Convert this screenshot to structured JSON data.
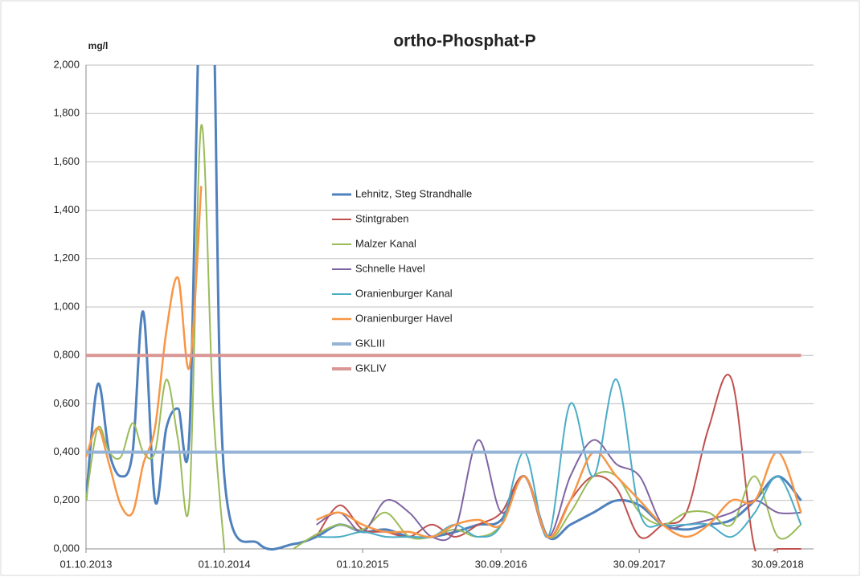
{
  "chart_data": {
    "type": "line",
    "title": "ortho-Phosphat-P",
    "y_label": "mg/l",
    "x": [
      "01.10.2013",
      "01.11.2013",
      "01.12.2013",
      "01.01.2014",
      "01.02.2014",
      "01.03.2014",
      "01.04.2014",
      "01.05.2014",
      "01.06.2014",
      "01.07.2014",
      "01.08.2014",
      "01.09.2014",
      "01.10.2014",
      "01.01.2015",
      "01.04.2015",
      "01.06.2015",
      "01.08.2015",
      "01.10.2015",
      "01.12.2015",
      "01.02.2016",
      "01.04.2016",
      "01.06.2016",
      "01.08.2016",
      "01.10.2016",
      "01.12.2016",
      "01.02.2017",
      "01.04.2017",
      "01.06.2017",
      "01.08.2017",
      "01.10.2017",
      "01.12.2017",
      "01.02.2018",
      "01.04.2018",
      "01.06.2018",
      "01.08.2018",
      "01.10.2018",
      "01.12.2018"
    ],
    "series": [
      {
        "name": "Lehnitz, Steg Strandhalle",
        "color": "#4f81bd",
        "width": 3,
        "values": [
          0.2,
          0.68,
          0.4,
          0.3,
          0.4,
          0.98,
          0.2,
          0.5,
          0.58,
          0.48,
          2.5,
          2.3,
          0.3,
          0.02,
          0.02,
          0.05,
          0.1,
          0.07,
          0.08,
          0.05,
          0.05,
          0.07,
          0.1,
          0.12,
          0.3,
          0.05,
          0.1,
          0.15,
          0.2,
          0.18,
          0.1,
          0.08,
          0.1,
          0.12,
          0.2,
          0.3,
          0.2
        ]
      },
      {
        "name": "Stintgraben",
        "color": "#c0504d",
        "width": 2,
        "values": [
          null,
          null,
          null,
          null,
          null,
          null,
          null,
          null,
          null,
          null,
          null,
          null,
          null,
          null,
          null,
          0.05,
          0.18,
          0.08,
          0.07,
          0.05,
          0.1,
          0.05,
          0.1,
          0.15,
          0.3,
          0.05,
          0.2,
          0.3,
          0.25,
          0.05,
          0.1,
          0.15,
          0.5,
          0.7,
          0.0,
          0.0,
          0.0
        ]
      },
      {
        "name": "Malzer Kanal",
        "color": "#9bbb59",
        "width": 2,
        "values": [
          0.2,
          0.5,
          0.4,
          0.38,
          0.52,
          0.4,
          0.4,
          0.7,
          0.45,
          0.2,
          1.75,
          0.6,
          0.0,
          null,
          0.0,
          0.06,
          0.1,
          0.08,
          0.15,
          0.05,
          0.05,
          0.08,
          0.05,
          0.1,
          0.3,
          0.05,
          0.15,
          0.3,
          0.3,
          0.15,
          0.1,
          0.15,
          0.15,
          0.1,
          0.3,
          0.05,
          0.1
        ]
      },
      {
        "name": "Schnelle Havel",
        "color": "#8064a2",
        "width": 2,
        "values": [
          null,
          null,
          null,
          null,
          null,
          null,
          null,
          null,
          null,
          null,
          null,
          null,
          null,
          null,
          null,
          0.1,
          0.15,
          0.07,
          0.2,
          0.15,
          0.05,
          0.08,
          0.45,
          0.15,
          0.3,
          0.05,
          0.3,
          0.45,
          0.35,
          0.3,
          0.1,
          0.1,
          0.12,
          0.15,
          0.2,
          0.15,
          0.15
        ]
      },
      {
        "name": "Oranienburger Kanal",
        "color": "#4bacc6",
        "width": 2,
        "values": [
          null,
          null,
          null,
          null,
          null,
          null,
          null,
          null,
          null,
          null,
          null,
          null,
          null,
          null,
          null,
          0.05,
          0.05,
          0.07,
          0.05,
          0.05,
          0.05,
          0.1,
          0.05,
          0.1,
          0.4,
          0.05,
          0.6,
          0.3,
          0.7,
          0.15,
          0.1,
          0.1,
          0.1,
          0.05,
          0.15,
          0.3,
          0.1
        ]
      },
      {
        "name": "Oranienburger Havel",
        "color": "#f79646",
        "width": 2.5,
        "values": [
          0.38,
          0.5,
          0.35,
          0.18,
          0.15,
          0.35,
          0.5,
          0.9,
          1.12,
          0.75,
          1.5,
          null,
          null,
          null,
          null,
          0.12,
          0.15,
          0.1,
          0.07,
          0.07,
          0.05,
          0.1,
          0.12,
          0.1,
          0.3,
          0.05,
          0.2,
          0.4,
          0.3,
          0.2,
          0.1,
          0.05,
          0.1,
          0.2,
          0.2,
          0.4,
          0.15
        ]
      },
      {
        "name": "GKLIII",
        "color": "#95b3d7",
        "width": 4,
        "values": [
          0.4,
          0.4,
          0.4,
          0.4,
          0.4,
          0.4,
          0.4,
          0.4,
          0.4,
          0.4,
          0.4,
          0.4,
          0.4,
          0.4,
          0.4,
          0.4,
          0.4,
          0.4,
          0.4,
          0.4,
          0.4,
          0.4,
          0.4,
          0.4,
          0.4,
          0.4,
          0.4,
          0.4,
          0.4,
          0.4,
          0.4,
          0.4,
          0.4,
          0.4,
          0.4,
          0.4,
          0.4
        ]
      },
      {
        "name": "GKLIV",
        "color": "#d99694",
        "width": 4,
        "values": [
          0.8,
          0.8,
          0.8,
          0.8,
          0.8,
          0.8,
          0.8,
          0.8,
          0.8,
          0.8,
          0.8,
          0.8,
          0.8,
          0.8,
          0.8,
          0.8,
          0.8,
          0.8,
          0.8,
          0.8,
          0.8,
          0.8,
          0.8,
          0.8,
          0.8,
          0.8,
          0.8,
          0.8,
          0.8,
          0.8,
          0.8,
          0.8,
          0.8,
          0.8,
          0.8,
          0.8,
          0.8
        ]
      }
    ],
    "xlim": [
      "01.10.2013",
      "03.01.2019"
    ],
    "xticks": [
      "01.10.2013",
      "01.10.2014",
      "01.10.2015",
      "30.09.2016",
      "30.09.2017",
      "30.09.2018"
    ],
    "ylim": [
      0,
      2
    ],
    "yticks": [
      {
        "value": 0,
        "label": "0,000"
      },
      {
        "value": 0.2,
        "label": "0,200"
      },
      {
        "value": 0.4,
        "label": "0,400"
      },
      {
        "value": 0.6,
        "label": "0,600"
      },
      {
        "value": 0.8,
        "label": "0,800"
      },
      {
        "value": 1,
        "label": "1,000"
      },
      {
        "value": 1.2,
        "label": "1,200"
      },
      {
        "value": 1.4,
        "label": "1,400"
      },
      {
        "value": 1.6,
        "label": "1,600"
      },
      {
        "value": 1.8,
        "label": "1,800"
      },
      {
        "value": 2,
        "label": "2,000"
      }
    ],
    "grid": true,
    "legend": "center"
  }
}
